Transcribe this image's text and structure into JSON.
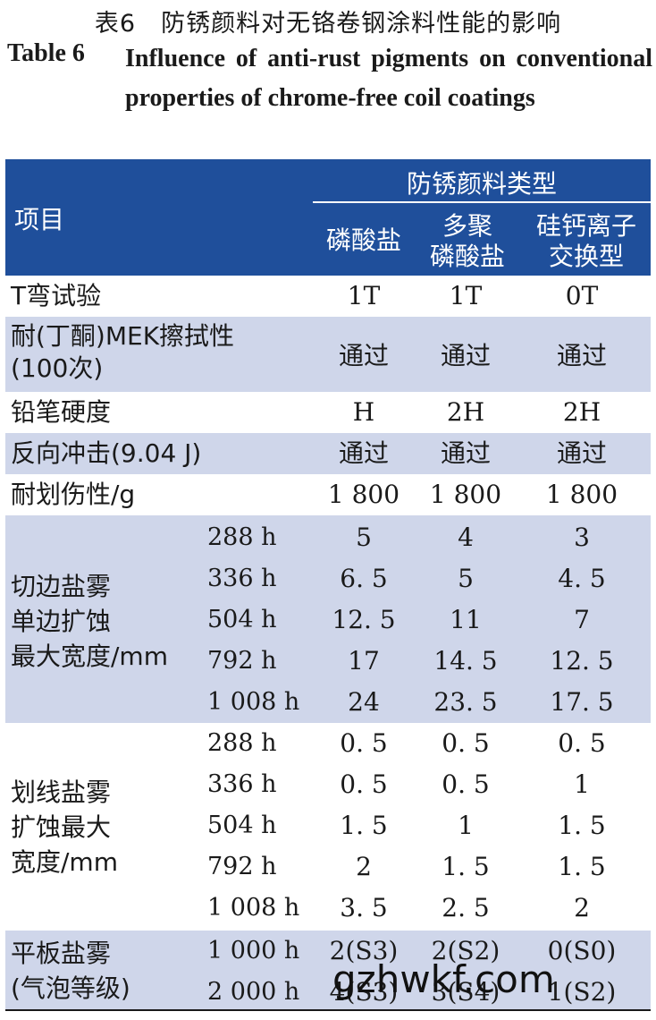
{
  "caption": {
    "cn": "表6　防锈颜料对无铬卷钢涂料性能的影响",
    "en_label": "Table 6",
    "en_text": "Influence of anti-rust pigments on conventional properties of chrome-free coil coatings"
  },
  "header": {
    "item": "项目",
    "group": "防锈颜料类型",
    "col1": "磷酸盐",
    "col2_line1": "多聚",
    "col2_line2": "磷酸盐",
    "col3_line1": "硅钙离子",
    "col3_line2": "交换型"
  },
  "rows": [
    {
      "name": "T弯试验",
      "v1": "1T",
      "v2": "1T",
      "v3": "0T"
    },
    {
      "name_line1": "耐(丁酮)MEK擦拭性",
      "name_line2": "(100次)",
      "v1": "通过",
      "v2": "通过",
      "v3": "通过"
    },
    {
      "name": "铅笔硬度",
      "v1": "H",
      "v2": "2H",
      "v3": "2H"
    },
    {
      "name": "反向冲击(9.04 J)",
      "v1": "通过",
      "v2": "通过",
      "v3": "通过"
    },
    {
      "name": "耐划伤性/g",
      "v1": "1 800",
      "v2": "1 800",
      "v3": "1 800"
    }
  ],
  "edge_salt": {
    "name_line1": "切边盐雾",
    "name_line2": "单边扩蚀",
    "name_line3": "最大宽度/mm",
    "rows": [
      {
        "t": "288 h",
        "v1": "5",
        "v2": "4",
        "v3": "3"
      },
      {
        "t": "336 h",
        "v1": "6. 5",
        "v2": "5",
        "v3": "4. 5"
      },
      {
        "t": "504 h",
        "v1": "12. 5",
        "v2": "11",
        "v3": "7"
      },
      {
        "t": "792 h",
        "v1": "17",
        "v2": "14. 5",
        "v3": "12. 5"
      },
      {
        "t": "1 008 h",
        "v1": "24",
        "v2": "23. 5",
        "v3": "17. 5"
      }
    ]
  },
  "scribe_salt": {
    "name_line1": "划线盐雾",
    "name_line2": "扩蚀最大",
    "name_line3": "宽度/mm",
    "rows": [
      {
        "t": "288 h",
        "v1": "0. 5",
        "v2": "0. 5",
        "v3": "0. 5"
      },
      {
        "t": "336 h",
        "v1": "0. 5",
        "v2": "0. 5",
        "v3": "1"
      },
      {
        "t": "504 h",
        "v1": "1. 5",
        "v2": "1",
        "v3": "1. 5"
      },
      {
        "t": "792 h",
        "v1": "2",
        "v2": "1. 5",
        "v3": "1. 5"
      },
      {
        "t": "1 008 h",
        "v1": "3. 5",
        "v2": "2. 5",
        "v3": "2"
      }
    ]
  },
  "panel_salt": {
    "name_line1": "平板盐雾",
    "name_line2": "(气泡等级)",
    "rows": [
      {
        "t": "1 000 h",
        "v1": "2(S3)",
        "v2": "2(S2)",
        "v3": "0(S0)"
      },
      {
        "t": "2 000 h",
        "v1": "4(S3)",
        "v2": "3(S4)",
        "v3": "1(S2)"
      }
    ]
  },
  "watermark": "gzhwkf.com"
}
